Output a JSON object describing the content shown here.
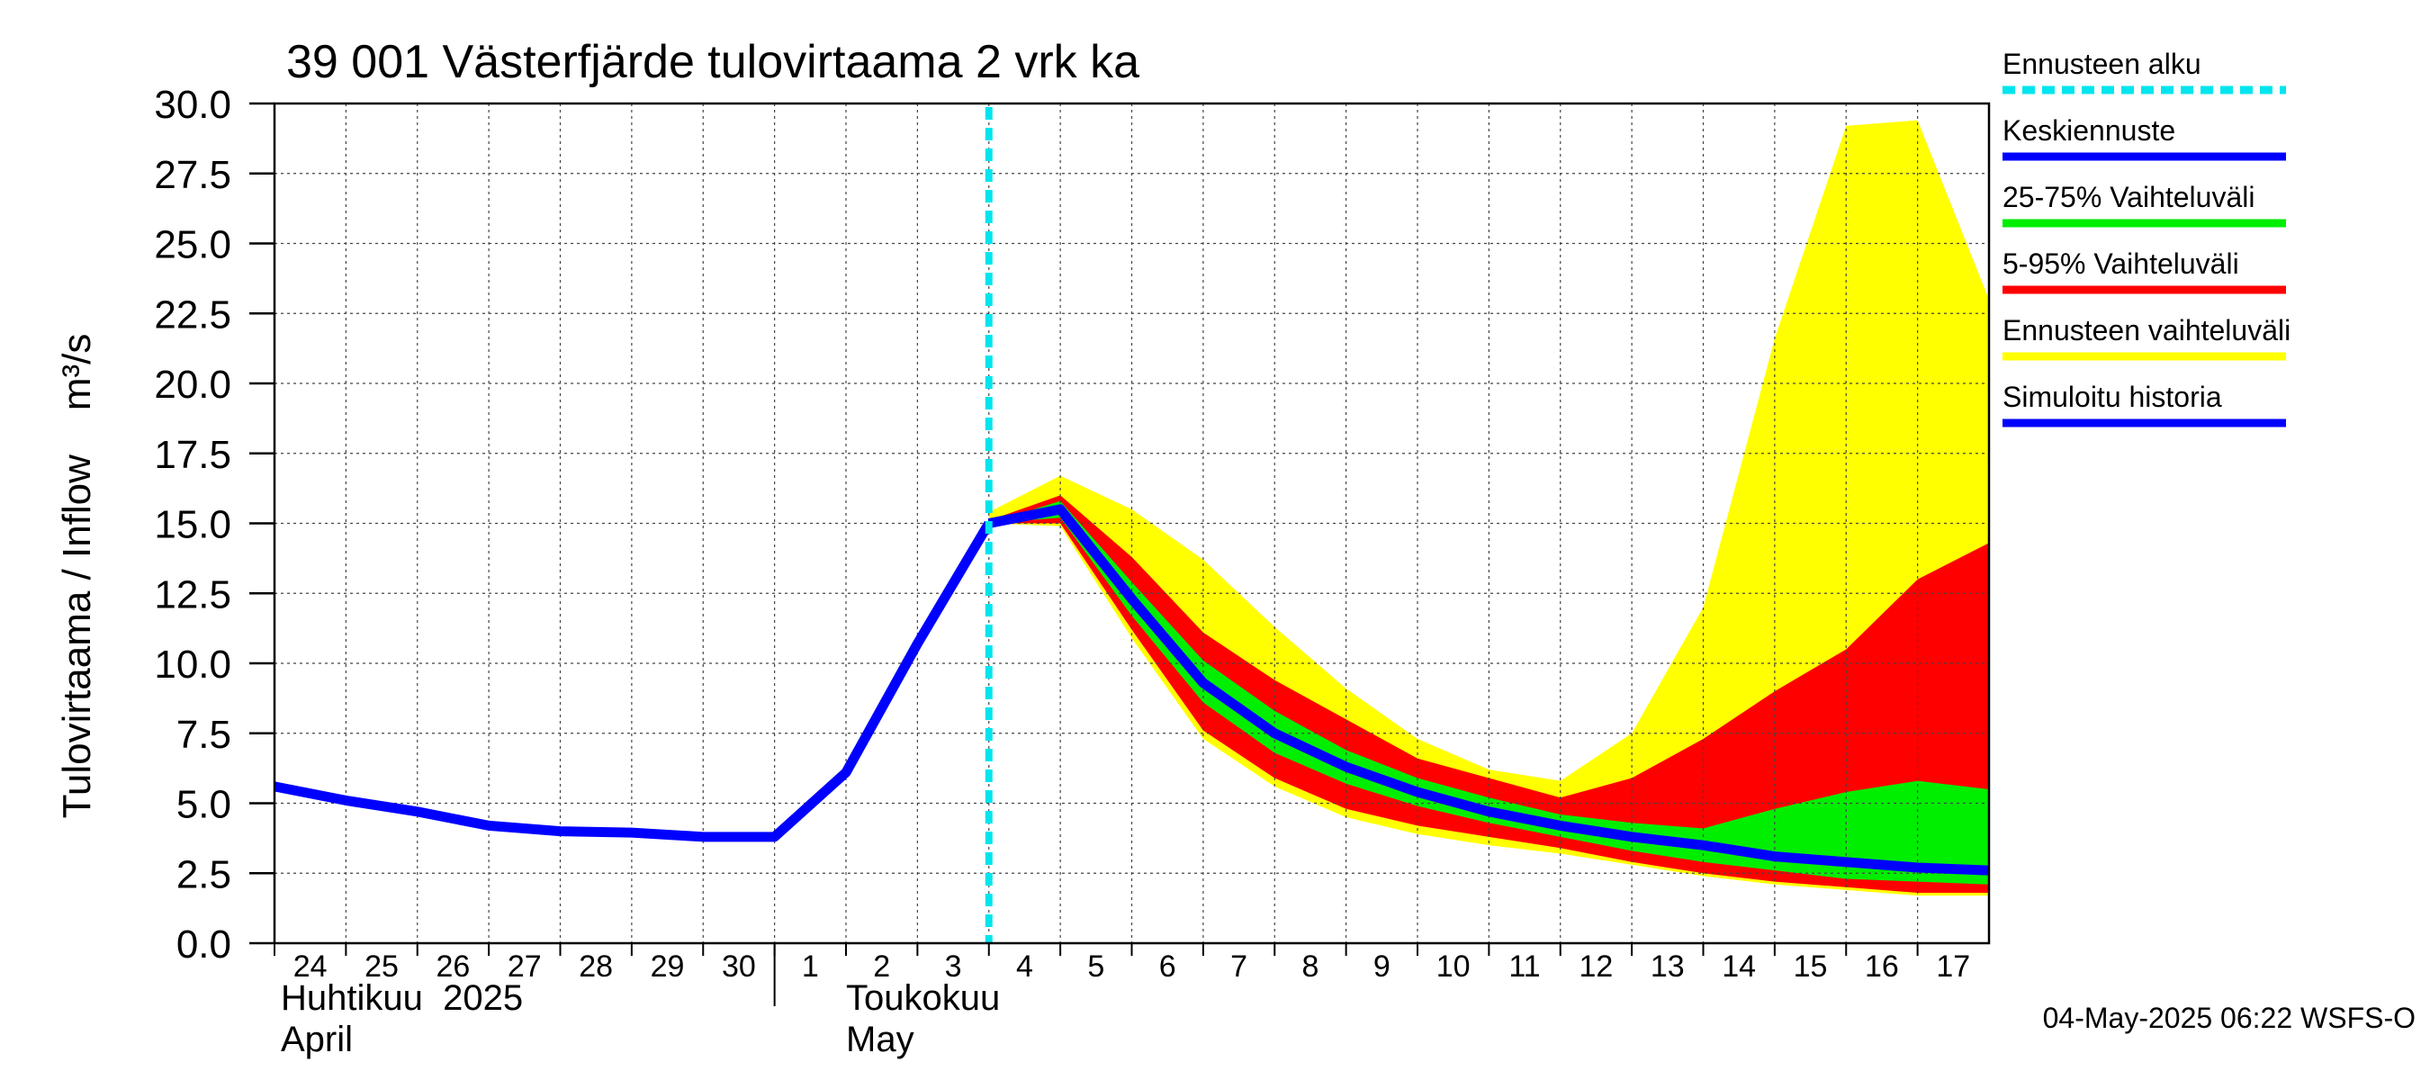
{
  "chart_data": {
    "type": "area",
    "title": "39 001 Västerfjärde tulovirtaama 2 vrk ka",
    "ylabel": "Tulovirtaama / Inflow    m³/s",
    "ylim": [
      0,
      30
    ],
    "yticks": [
      "0.0",
      "2.5",
      "5.0",
      "7.5",
      "10.0",
      "12.5",
      "15.0",
      "17.5",
      "20.0",
      "22.5",
      "25.0",
      "27.5",
      "30.0"
    ],
    "xlim": [
      0,
      24
    ],
    "x_ticks": [
      {
        "x": 0,
        "label": "24"
      },
      {
        "x": 1,
        "label": "25"
      },
      {
        "x": 2,
        "label": "26"
      },
      {
        "x": 3,
        "label": "27"
      },
      {
        "x": 4,
        "label": "28"
      },
      {
        "x": 5,
        "label": "29"
      },
      {
        "x": 6,
        "label": "30"
      },
      {
        "x": 7,
        "label": "1"
      },
      {
        "x": 8,
        "label": "2"
      },
      {
        "x": 9,
        "label": "3"
      },
      {
        "x": 10,
        "label": "4"
      },
      {
        "x": 11,
        "label": "5"
      },
      {
        "x": 12,
        "label": "6"
      },
      {
        "x": 13,
        "label": "7"
      },
      {
        "x": 14,
        "label": "8"
      },
      {
        "x": 15,
        "label": "9"
      },
      {
        "x": 16,
        "label": "10"
      },
      {
        "x": 17,
        "label": "11"
      },
      {
        "x": 18,
        "label": "12"
      },
      {
        "x": 19,
        "label": "13"
      },
      {
        "x": 20,
        "label": "14"
      },
      {
        "x": 21,
        "label": "15"
      },
      {
        "x": 22,
        "label": "16"
      },
      {
        "x": 23,
        "label": "17"
      }
    ],
    "month_labels": {
      "april_fi": "Huhtikuu  2025",
      "april_en": "April",
      "may_fi": "Toukokuu",
      "may_en": "May"
    },
    "forecast_start_x": 10,
    "grid": true,
    "legend_position": "right",
    "legend": [
      {
        "label": "Ennusteen alku",
        "color": "#00e5ee",
        "style": "dashed"
      },
      {
        "label": "Keskiennuste",
        "color": "#0000ff",
        "style": "solid"
      },
      {
        "label": "25-75% Vaihteluväli",
        "color": "#00ee00",
        "style": "solid"
      },
      {
        "label": "5-95% Vaihteluväli",
        "color": "#ff0000",
        "style": "solid"
      },
      {
        "label": "Ennusteen vaihteluväli",
        "color": "#ffff00",
        "style": "solid"
      },
      {
        "label": "Simuloitu historia",
        "color": "#0000ff",
        "style": "solid"
      }
    ],
    "bands": [
      {
        "name": "Ennusteen vaihteluväli",
        "color": "#ffff00",
        "x": [
          10,
          11,
          12,
          13,
          14,
          15,
          16,
          17,
          18,
          19,
          20,
          21,
          22,
          23,
          24
        ],
        "upper": [
          15.4,
          16.7,
          15.5,
          13.7,
          11.3,
          9.1,
          7.3,
          6.2,
          5.8,
          7.5,
          12.0,
          21.6,
          29.2,
          29.4,
          23.0
        ],
        "lower": [
          15.0,
          14.9,
          10.9,
          7.3,
          5.6,
          4.5,
          3.9,
          3.5,
          3.2,
          2.8,
          2.4,
          2.1,
          1.9,
          1.7,
          1.7
        ]
      },
      {
        "name": "5-95% Vaihteluväli",
        "color": "#ff0000",
        "x": [
          10,
          11,
          12,
          13,
          14,
          15,
          16,
          17,
          18,
          19,
          20,
          21,
          22,
          23,
          24
        ],
        "upper": [
          15.1,
          16.0,
          13.8,
          11.1,
          9.4,
          8.0,
          6.6,
          5.9,
          5.2,
          5.9,
          7.3,
          9.0,
          10.5,
          13.0,
          14.3
        ],
        "lower": [
          15.0,
          15.0,
          11.2,
          7.6,
          5.9,
          4.8,
          4.2,
          3.8,
          3.4,
          2.9,
          2.5,
          2.2,
          2.0,
          1.8,
          1.8
        ]
      },
      {
        "name": "25-75% Vaihteluväli",
        "color": "#00ee00",
        "x": [
          10,
          11,
          12,
          13,
          14,
          15,
          16,
          17,
          18,
          19,
          20,
          21,
          22,
          23,
          24
        ],
        "upper": [
          15.0,
          15.8,
          12.9,
          10.1,
          8.3,
          6.9,
          5.9,
          5.2,
          4.6,
          4.3,
          4.1,
          4.8,
          5.4,
          5.8,
          5.5
        ],
        "lower": [
          15.0,
          15.2,
          11.7,
          8.6,
          6.8,
          5.7,
          4.9,
          4.3,
          3.8,
          3.3,
          2.9,
          2.6,
          2.3,
          2.2,
          2.1
        ]
      }
    ],
    "series": [
      {
        "name": "Simuloitu historia",
        "color": "#0000ff",
        "x": [
          0,
          1,
          2,
          3,
          4,
          5,
          6,
          7,
          8,
          9,
          10
        ],
        "y": [
          5.6,
          5.1,
          4.7,
          4.2,
          4.0,
          3.95,
          3.8,
          3.8,
          6.1,
          10.7,
          15.0
        ]
      },
      {
        "name": "Keskiennuste",
        "color": "#0000ff",
        "x": [
          10,
          11,
          12,
          13,
          14,
          15,
          16,
          17,
          18,
          19,
          20,
          21,
          22,
          23,
          24
        ],
        "y": [
          15.0,
          15.5,
          12.3,
          9.3,
          7.5,
          6.3,
          5.4,
          4.7,
          4.2,
          3.8,
          3.5,
          3.1,
          2.9,
          2.7,
          2.6
        ]
      }
    ]
  },
  "footer": "04-May-2025 06:22 WSFS-O"
}
